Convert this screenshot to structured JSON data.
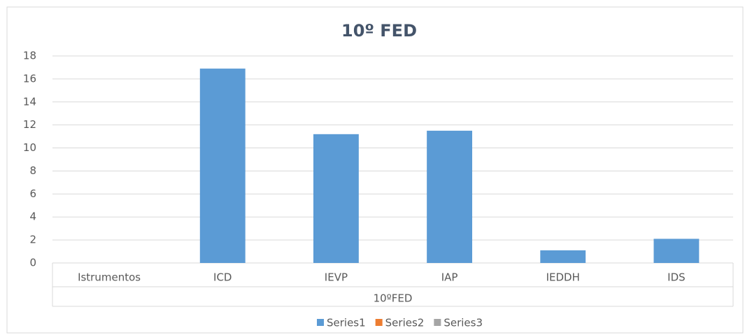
{
  "chart_data": {
    "type": "bar",
    "title": "10º FED",
    "categories": [
      "Istrumentos",
      "ICD",
      "IEVP",
      "IAP",
      "IEDDH",
      "IDS"
    ],
    "x_group_label": "10ºFED",
    "series": [
      {
        "name": "Series1",
        "color": "#5b9bd5",
        "values": [
          null,
          16.9,
          11.2,
          11.5,
          1.1,
          2.1
        ]
      },
      {
        "name": "Series2",
        "color": "#ed7d31",
        "values": [
          null,
          null,
          null,
          null,
          null,
          null
        ]
      },
      {
        "name": "Series3",
        "color": "#a5a5a5",
        "values": [
          null,
          null,
          null,
          null,
          null,
          null
        ]
      }
    ],
    "ylim": [
      0,
      18
    ],
    "yticks": [
      0,
      2,
      4,
      6,
      8,
      10,
      12,
      14,
      16,
      18
    ],
    "grid": true,
    "legend": "bottom"
  }
}
